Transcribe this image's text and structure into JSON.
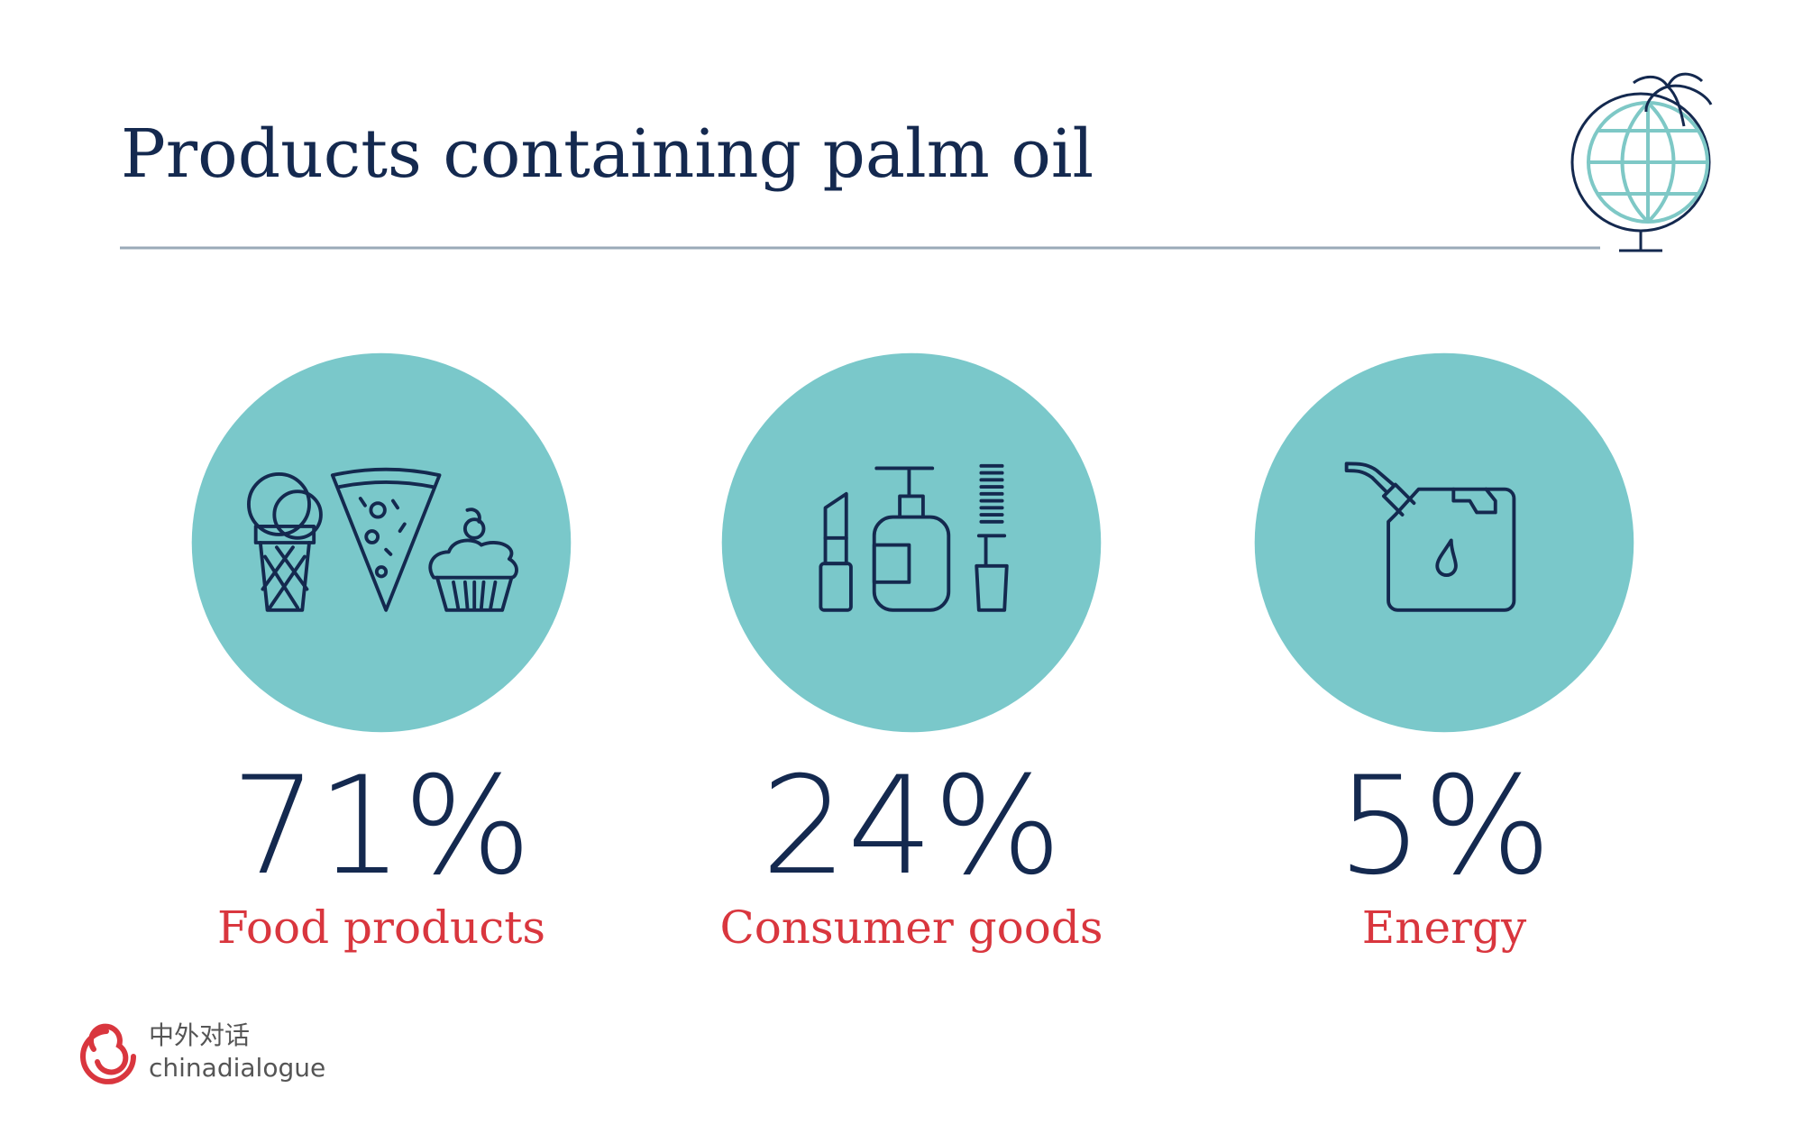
{
  "header": {
    "title": "Products containing palm oil"
  },
  "items": [
    {
      "value": "71%",
      "label": "Food products"
    },
    {
      "value": "24%",
      "label": "Consumer goods"
    },
    {
      "value": "5%",
      "label": "Energy"
    }
  ],
  "logo": {
    "chinese": "中外对话",
    "name": "chinadialogue"
  }
}
